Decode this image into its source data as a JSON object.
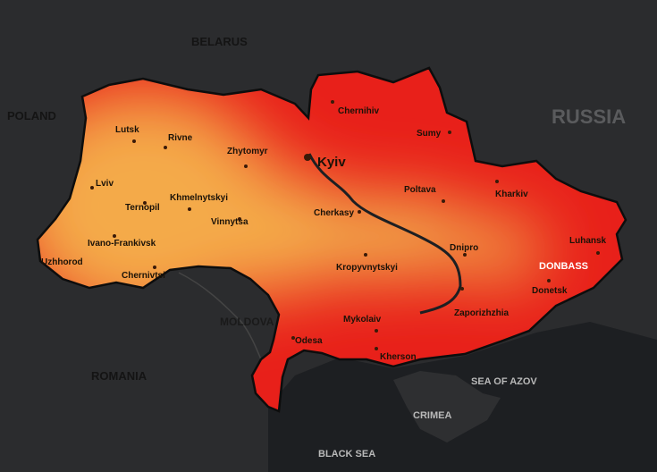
{
  "colors": {
    "background": "#2b2c2e",
    "sea": "#1d1f22",
    "low": "#f4aa4a",
    "high": "#e8201a",
    "border": "#0d0d0d"
  },
  "countries": {
    "belarus": "BELARUS",
    "poland": "POLAND",
    "russia": "RUSSIA",
    "moldova": "MOLDOVA",
    "romania": "ROMANIA"
  },
  "seas": {
    "azov": "SEA OF AZOV",
    "crimea": "CRIMEA",
    "black": "BLACK SEA"
  },
  "region": "DONBASS",
  "capital": "Kyiv",
  "cities": [
    "Lutsk",
    "Rivne",
    "Zhytomyr",
    "Lviv",
    "Ternopil",
    "Khmelnytskyi",
    "Vinnytsa",
    "Ivano-Frankivsk",
    "Uzhhorod",
    "Chernivtsi",
    "Chernihiv",
    "Sumy",
    "Poltava",
    "Kharkiv",
    "Cherkasy",
    "Dnipro",
    "Kropyvnytskyi",
    "Luhansk",
    "Donetsk",
    "Zaporizhzhia",
    "Mykolaiv",
    "Odesa",
    "Kherson"
  ]
}
